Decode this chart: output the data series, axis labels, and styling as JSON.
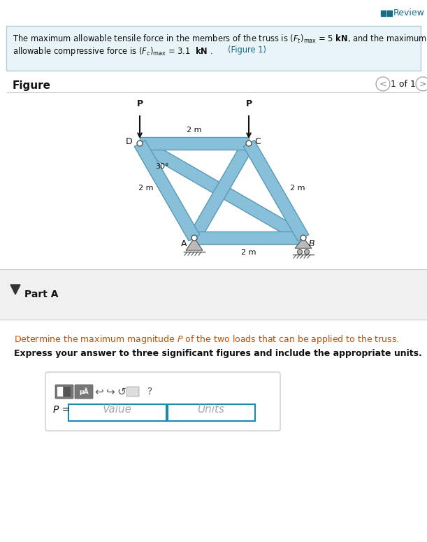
{
  "bg_color": "#ffffff",
  "info_box_bg": "#e8f4f8",
  "info_box_border": "#b0cdd8",
  "truss_color": "#87c0d8",
  "truss_edge_color": "#5a9ab5",
  "figure_label": "Figure",
  "page_label": "1 of 1",
  "review_text": "Review",
  "part_a_label": "Part A",
  "part_a_q1": "Determine the maximum magnitude $P$ of the two loads that can be applied to the truss.",
  "part_a_q2": "Express your answer to three significant figures and include the appropriate units.",
  "angle_label": "30°",
  "dim_DC": "2 m",
  "dim_DA": "2 m",
  "dim_CB": "2 m",
  "dim_AB": "2 m",
  "scale": 78,
  "D": [
    200.0,
    570.0
  ],
  "thickness": 9
}
